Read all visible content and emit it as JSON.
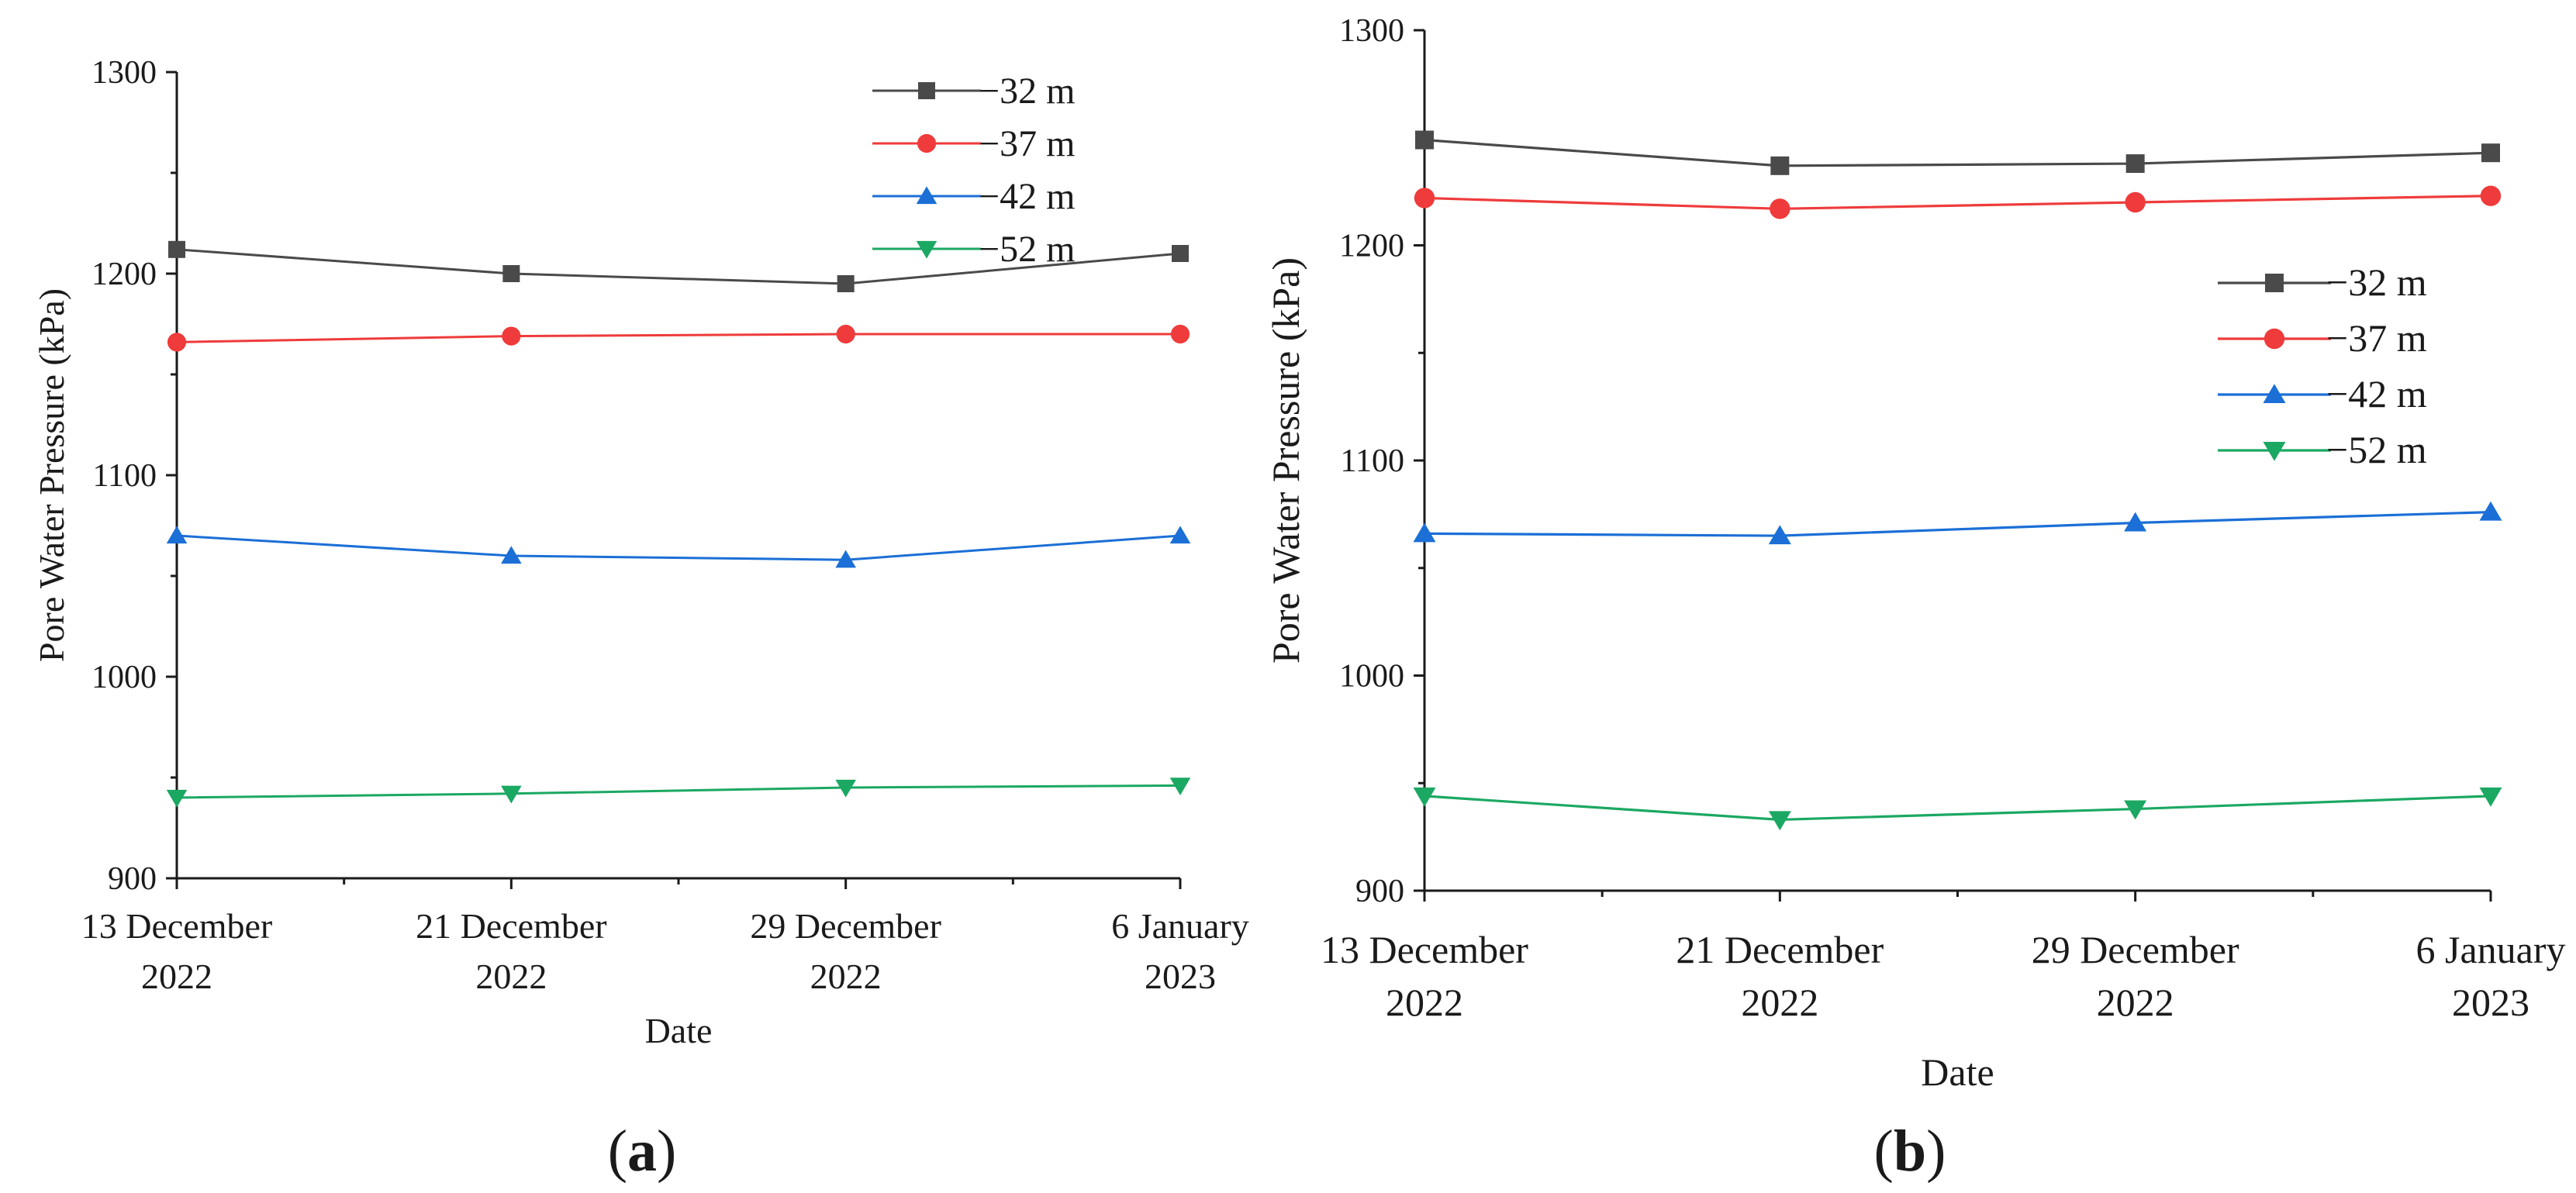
{
  "figure": {
    "panels": [
      {
        "label_open": "(",
        "label_letter": "a",
        "label_close": ")"
      },
      {
        "label_open": "(",
        "label_letter": "b",
        "label_close": ")"
      }
    ]
  },
  "chart_data": [
    {
      "type": "line",
      "panel": "a",
      "xlabel": "Date",
      "ylabel": "Pore Water Pressure (kPa)",
      "categories": [
        [
          "13 December",
          "2022"
        ],
        [
          "21 December",
          "2022"
        ],
        [
          "29 December",
          "2022"
        ],
        [
          "6 January",
          "2023"
        ]
      ],
      "ylim": [
        900,
        1300
      ],
      "yticks": [
        900,
        1000,
        1100,
        1200,
        1300
      ],
      "legend_position": "top-right",
      "series": [
        {
          "name": "−32 m",
          "color": "#4a4a4a",
          "marker": "square",
          "values": [
            1212,
            1200,
            1195,
            1210
          ]
        },
        {
          "name": "−37 m",
          "color": "#ef3b3b",
          "marker": "circle",
          "values": [
            1166,
            1169,
            1170,
            1170
          ]
        },
        {
          "name": "−42 m",
          "color": "#1b6fd6",
          "marker": "triangle-up",
          "values": [
            1070,
            1060,
            1058,
            1070
          ]
        },
        {
          "name": "−52 m",
          "color": "#1ba862",
          "marker": "triangle-down",
          "values": [
            940,
            942,
            945,
            946
          ]
        }
      ]
    },
    {
      "type": "line",
      "panel": "b",
      "xlabel": "Date",
      "ylabel": "Pore Water Pressure (kPa)",
      "categories": [
        [
          "13 December",
          "2022"
        ],
        [
          "21 December",
          "2022"
        ],
        [
          "29 December",
          "2022"
        ],
        [
          "6 January",
          "2023"
        ]
      ],
      "ylim": [
        900,
        1300
      ],
      "yticks": [
        900,
        1000,
        1100,
        1200,
        1300
      ],
      "legend_position": "middle-right",
      "series": [
        {
          "name": "−32 m",
          "color": "#4a4a4a",
          "marker": "square",
          "values": [
            1249,
            1237,
            1238,
            1243
          ]
        },
        {
          "name": "−37 m",
          "color": "#ef3b3b",
          "marker": "circle",
          "values": [
            1222,
            1217,
            1220,
            1223
          ]
        },
        {
          "name": "−42 m",
          "color": "#1b6fd6",
          "marker": "triangle-up",
          "values": [
            1066,
            1065,
            1071,
            1076
          ]
        },
        {
          "name": "−52 m",
          "color": "#1ba862",
          "marker": "triangle-down",
          "values": [
            944,
            933,
            938,
            944
          ]
        }
      ]
    }
  ]
}
